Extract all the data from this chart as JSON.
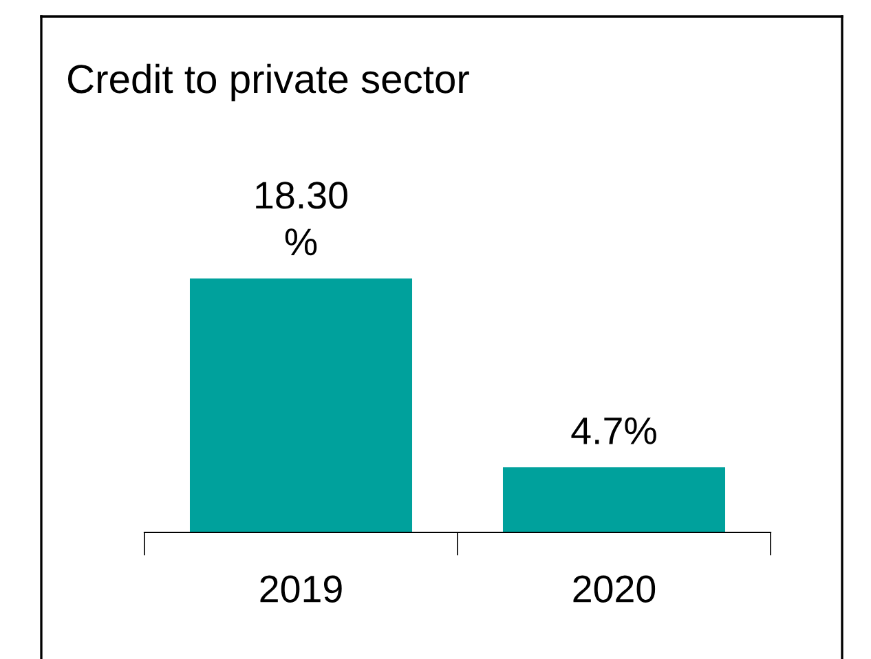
{
  "chart_data": {
    "type": "bar",
    "title": "Credit to private sector",
    "categories": [
      "2019",
      "2020"
    ],
    "values": [
      18.3,
      4.7
    ],
    "value_labels": [
      "18.30\n%",
      "4.7%"
    ],
    "color": "#00a19c"
  }
}
